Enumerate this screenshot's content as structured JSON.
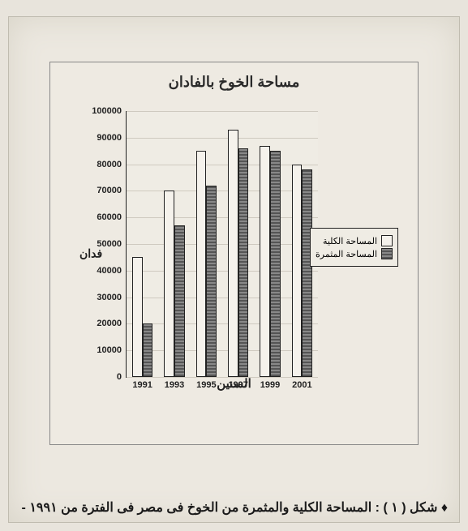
{
  "chart": {
    "type": "bar",
    "title": "مساحة الخوخ بالفادان",
    "xlabel": "السنين",
    "ylabel": "فدان",
    "categories": [
      "1991",
      "1993",
      "1995",
      "1997",
      "1999",
      "2001"
    ],
    "series": [
      {
        "name": "المساحة الكلية",
        "values": [
          45000,
          70000,
          85000,
          93000,
          87000,
          80000
        ],
        "swatch": "a"
      },
      {
        "name": "المساحة المثمرة",
        "values": [
          20000,
          57000,
          72000,
          86000,
          85000,
          78000
        ],
        "swatch": "b"
      }
    ],
    "ylim": [
      0,
      100000
    ],
    "ytick_step": 10000,
    "bar_width": 0.32,
    "colors": {
      "series_a_fill": "#f5f2ec",
      "series_b_fill": "#666666",
      "axis": "#222222",
      "grid": "#cfcac0",
      "background": "#efece4",
      "page_bg": "#e8e4dc",
      "border": "#888888"
    },
    "fontsize": {
      "title": 18,
      "axis_label": 14,
      "tick": 11,
      "legend": 11
    }
  },
  "caption": "♦ شكل ( ١ ) : المساحة الكلية والمثمرة من الخوخ فى مصر فى الفترة من ١٩٩١ -"
}
